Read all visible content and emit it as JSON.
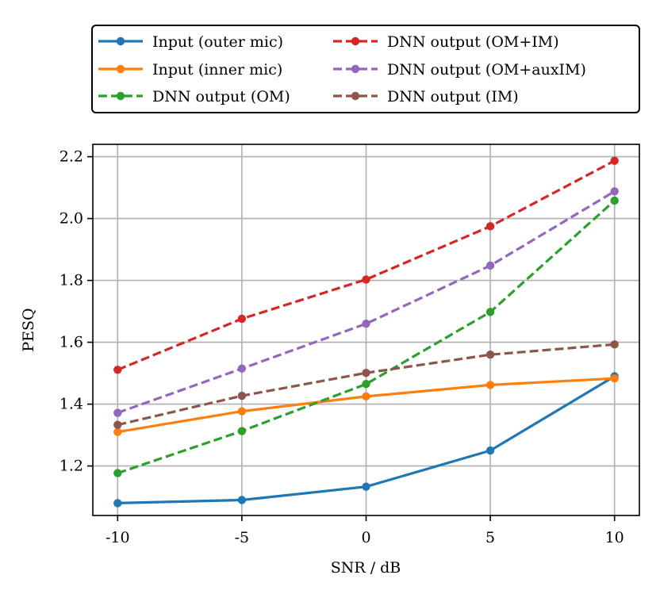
{
  "chart_data": {
    "type": "line",
    "title": "",
    "xlabel": "SNR / dB",
    "ylabel": "PESQ",
    "x": [
      -10,
      -5,
      0,
      5,
      10
    ],
    "x_tick_labels": [
      "-10",
      "-5",
      "0",
      "5",
      "10"
    ],
    "y_ticks": [
      1.2,
      1.4,
      1.6,
      1.8,
      2.0,
      2.2
    ],
    "y_tick_labels": [
      "1.2",
      "1.4",
      "1.6",
      "1.8",
      "2.0",
      "2.2"
    ],
    "xlim": [
      -11,
      11
    ],
    "ylim": [
      1.04,
      2.24
    ],
    "grid": true,
    "legend_position": "above plot, two columns",
    "series": [
      {
        "name": "Input (outer mic)",
        "color": "#1f77b4",
        "dash": "solid",
        "values": [
          1.08,
          1.09,
          1.133,
          1.25,
          1.49
        ]
      },
      {
        "name": "Input (inner mic)",
        "color": "#ff7f0e",
        "dash": "solid",
        "values": [
          1.31,
          1.377,
          1.425,
          1.462,
          1.483
        ]
      },
      {
        "name": "DNN output (OM)",
        "color": "#2ca02c",
        "dash": "dashed",
        "values": [
          1.177,
          1.313,
          1.465,
          1.698,
          2.058
        ]
      },
      {
        "name": "DNN output (OM+IM)",
        "color": "#d62728",
        "dash": "dashed",
        "values": [
          1.511,
          1.676,
          1.803,
          1.975,
          2.187
        ]
      },
      {
        "name": "DNN output (OM+auxIM)",
        "color": "#9467bd",
        "dash": "dashed",
        "values": [
          1.372,
          1.515,
          1.66,
          1.848,
          2.088
        ]
      },
      {
        "name": "DNN output (IM)",
        "color": "#8c564b",
        "dash": "dashed",
        "values": [
          1.333,
          1.427,
          1.501,
          1.56,
          1.593
        ]
      }
    ]
  }
}
